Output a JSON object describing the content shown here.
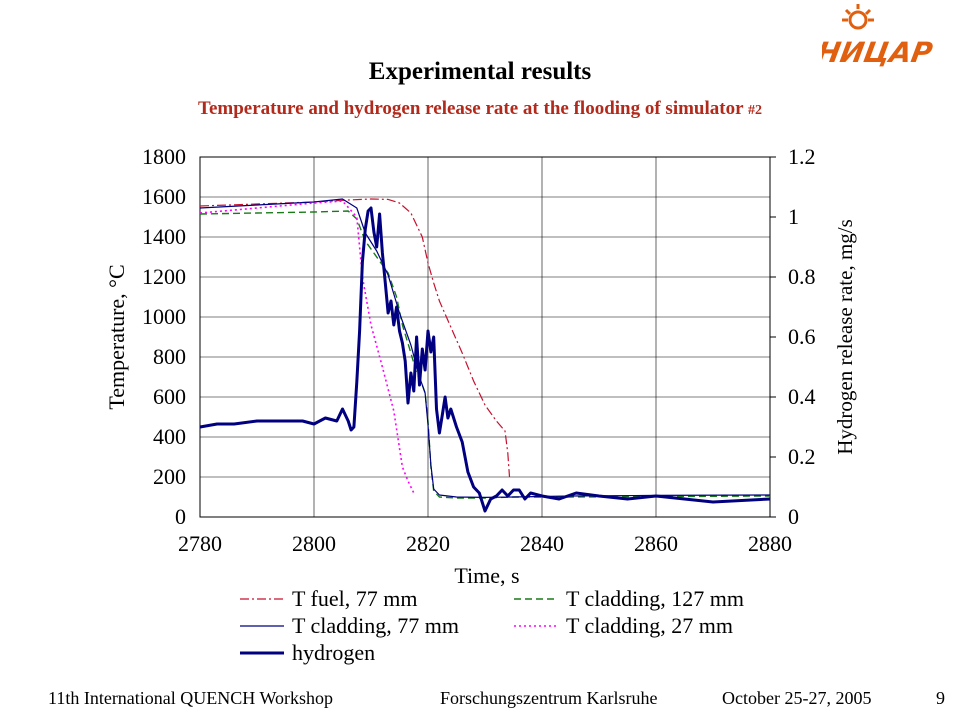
{
  "slide": {
    "title": "Experimental results",
    "subtitle_text": "Temperature and hydrogen release rate at the flooding of simulator ",
    "subtitle_num": "#2",
    "logo_text": "НИЦАР"
  },
  "footer": {
    "workshop": "11th International QUENCH Workshop",
    "org": "Forschungszentrum Karlsruhe",
    "date": "October 25-27, 2005",
    "page": "9"
  },
  "colors": {
    "t_fuel": "#c8102e",
    "t_clad127": "#1a7a1a",
    "t_clad77": "#000080",
    "t_clad27": "#ff00ff",
    "hydrogen": "#000080",
    "subtitle": "#b22a1c",
    "logo": "#e06010"
  },
  "chart_data": {
    "type": "line",
    "xlabel": "Time, s",
    "ylabel_left": "Temperature, °C",
    "ylabel_right": "Hydrogen release rate, mg/s",
    "xlim": [
      2780,
      2880
    ],
    "ylim_left": [
      0,
      1800
    ],
    "ylim_right": [
      0,
      1.2
    ],
    "xticks": [
      2780,
      2800,
      2820,
      2840,
      2860,
      2880
    ],
    "yticks_left": [
      0,
      200,
      400,
      600,
      800,
      1000,
      1200,
      1400,
      1600,
      1800
    ],
    "yticks_right": [
      "0",
      "0.2",
      "0.4",
      "0.6",
      "0.8",
      "1",
      "1.2"
    ],
    "grid": true,
    "legend_position": "bottom",
    "series": [
      {
        "name": "T fuel, 77 mm",
        "axis": "left",
        "style": "dashdot",
        "key": "t_fuel",
        "x": [
          2780,
          2790,
          2800,
          2806,
          2810,
          2813,
          2815,
          2817,
          2819,
          2820,
          2821,
          2822,
          2824,
          2826,
          2828,
          2830,
          2832,
          2833.5,
          2834,
          2834.3
        ],
        "y": [
          1555,
          1565,
          1575,
          1585,
          1590,
          1588,
          1570,
          1520,
          1400,
          1270,
          1170,
          1080,
          950,
          820,
          680,
          560,
          480,
          430,
          320,
          200
        ]
      },
      {
        "name": "T cladding, 127 mm",
        "axis": "left",
        "style": "dashed",
        "key": "t_clad127",
        "x": [
          2780,
          2790,
          2800,
          2806,
          2807.5,
          2809,
          2811,
          2813,
          2814.5,
          2815.5,
          2817,
          2818,
          2819,
          2819.5,
          2820,
          2820.5,
          2821,
          2822,
          2825,
          2830,
          2835,
          2845,
          2860,
          2880
        ],
        "y": [
          1515,
          1520,
          1525,
          1530,
          1490,
          1380,
          1300,
          1220,
          1100,
          960,
          820,
          720,
          660,
          620,
          480,
          250,
          130,
          100,
          95,
          95,
          100,
          100,
          102,
          105
        ]
      },
      {
        "name": "T cladding, 77 mm",
        "axis": "left",
        "style": "solid",
        "key": "t_clad77",
        "x": [
          2780,
          2790,
          2800,
          2805,
          2807.5,
          2809,
          2811,
          2813,
          2815,
          2817,
          2818.5,
          2819.5,
          2820,
          2820.5,
          2821,
          2822,
          2825,
          2830,
          2835,
          2845,
          2860,
          2880
        ],
        "y": [
          1545,
          1560,
          1575,
          1590,
          1545,
          1420,
          1330,
          1210,
          1020,
          860,
          700,
          620,
          460,
          260,
          140,
          110,
          100,
          98,
          100,
          105,
          108,
          110
        ]
      },
      {
        "name": "T cladding, 27 mm",
        "axis": "left",
        "style": "dotted",
        "key": "t_clad27",
        "x": [
          2780,
          2790,
          2800,
          2805,
          2807.5,
          2808.5,
          2810,
          2812,
          2814,
          2815.5,
          2816.5,
          2817.5
        ],
        "y": [
          1520,
          1545,
          1570,
          1580,
          1500,
          1200,
          960,
          750,
          530,
          250,
          180,
          120
        ]
      },
      {
        "name": "hydrogen",
        "axis": "right",
        "style": "bold",
        "key": "hydrogen",
        "x": [
          2780,
          2783,
          2786,
          2790,
          2794,
          2798,
          2800,
          2802,
          2804,
          2805,
          2806,
          2806.5,
          2807,
          2807.5,
          2808,
          2808.5,
          2809,
          2809.5,
          2810,
          2810.5,
          2811,
          2811.5,
          2812,
          2812.5,
          2813,
          2813.5,
          2814,
          2814.5,
          2815,
          2815.5,
          2816,
          2816.5,
          2817,
          2817.5,
          2818,
          2818.5,
          2819,
          2819.5,
          2820,
          2820.5,
          2821,
          2821.5,
          2822,
          2822.5,
          2823,
          2823.5,
          2824,
          2825,
          2826,
          2827,
          2828,
          2829,
          2830,
          2831,
          2832,
          2833,
          2834,
          2835,
          2836,
          2837,
          2838,
          2840,
          2843,
          2846,
          2850,
          2855,
          2860,
          2870,
          2880
        ],
        "y": [
          0.3,
          0.31,
          0.31,
          0.32,
          0.32,
          0.32,
          0.31,
          0.33,
          0.32,
          0.36,
          0.32,
          0.29,
          0.3,
          0.45,
          0.62,
          0.85,
          0.96,
          1.02,
          1.03,
          0.95,
          0.9,
          1.01,
          0.88,
          0.78,
          0.68,
          0.72,
          0.64,
          0.7,
          0.62,
          0.58,
          0.52,
          0.38,
          0.48,
          0.42,
          0.6,
          0.44,
          0.56,
          0.49,
          0.62,
          0.55,
          0.6,
          0.36,
          0.28,
          0.34,
          0.4,
          0.33,
          0.36,
          0.3,
          0.25,
          0.15,
          0.1,
          0.08,
          0.02,
          0.06,
          0.07,
          0.09,
          0.07,
          0.09,
          0.09,
          0.06,
          0.08,
          0.07,
          0.06,
          0.08,
          0.07,
          0.06,
          0.07,
          0.05,
          0.06
        ]
      }
    ]
  }
}
